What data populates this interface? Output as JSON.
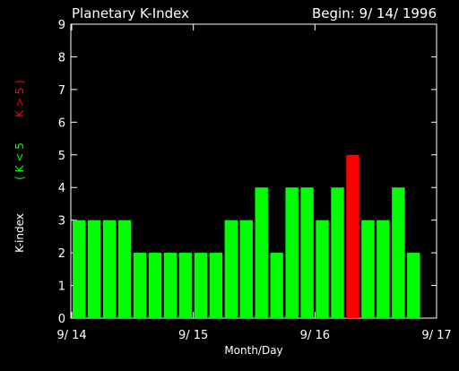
{
  "header": {
    "title": "Planetary K-Index",
    "begin_label": "Begin: 9/ 14/ 1996"
  },
  "colors": {
    "background": "#000000",
    "foreground": "#ffffff",
    "quiet": "#00ff00",
    "storm": "#ff0000"
  },
  "chart_data": {
    "type": "bar",
    "title": "Planetary K-Index",
    "subtitle": "Begin: 9/ 14/ 1996",
    "xlabel": "Month/Day",
    "ylabel": "K-index",
    "ylabel_legend": [
      {
        "text": "( K < 5",
        "color": "#00ff00"
      },
      {
        "text": "K > 5 )",
        "color": "#ff0000"
      }
    ],
    "ylim": [
      0,
      9
    ],
    "yticks": [
      0,
      1,
      2,
      3,
      4,
      5,
      6,
      7,
      8,
      9
    ],
    "xlim": [
      0,
      24
    ],
    "xticks": [
      {
        "pos": 0,
        "label": "9/ 14"
      },
      {
        "pos": 8,
        "label": "9/ 15"
      },
      {
        "pos": 16,
        "label": "9/ 16"
      },
      {
        "pos": 24,
        "label": "9/ 17"
      }
    ],
    "bar_width_fraction": 0.85,
    "storm_threshold": 5,
    "values": [
      3,
      3,
      3,
      3,
      2,
      2,
      2,
      2,
      2,
      2,
      3,
      3,
      4,
      2,
      4,
      4,
      3,
      4,
      5,
      3,
      3,
      4,
      2
    ]
  }
}
